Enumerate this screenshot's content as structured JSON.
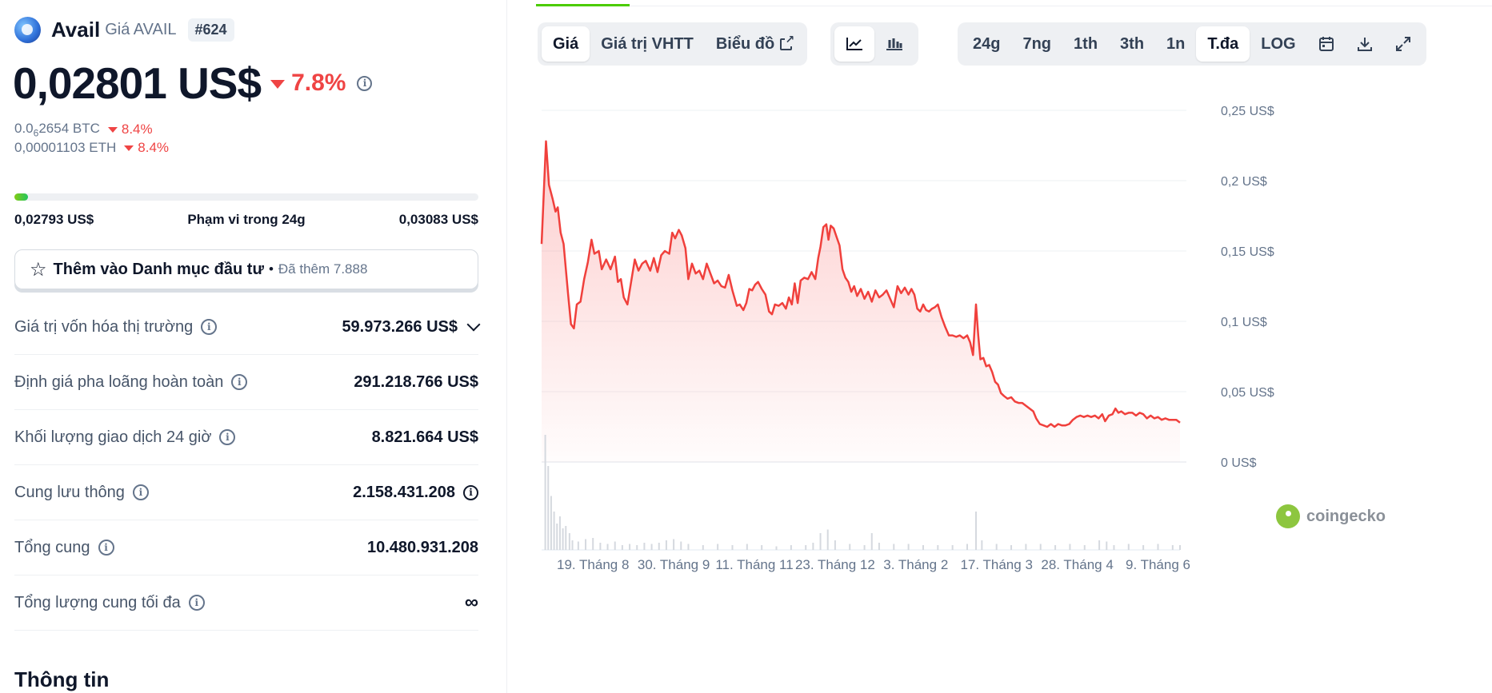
{
  "coin": {
    "name": "Avail",
    "price_label": "Giá AVAIL",
    "rank": "#624",
    "price": "0,02801 US$",
    "change_24h": "7.8%",
    "btc_prefix": "0.0",
    "btc_sub": "6",
    "btc_rest": "2654 BTC",
    "btc_change": "8.4%",
    "eth_price": "0,00001103 ETH",
    "eth_change": "8.4%"
  },
  "range": {
    "low": "0,02793 US$",
    "label": "Phạm vi trong 24g",
    "high": "0,03083 US$",
    "position_fraction": 0.03
  },
  "portfolio": {
    "button_label": "Thêm vào Danh mục đầu tư",
    "separator": "•",
    "added": "Đã thêm 7.888"
  },
  "stats": [
    {
      "label": "Giá trị vốn hóa thị trường",
      "value": "59.973.266 US$"
    },
    {
      "label": "Định giá pha loãng hoàn toàn",
      "value": "291.218.766 US$"
    },
    {
      "label": "Khối lượng giao dịch 24 giờ",
      "value": "8.821.664 US$"
    },
    {
      "label": "Cung lưu thông",
      "value": "2.158.431.208"
    },
    {
      "label": "Tổng cung",
      "value": "10.480.931.208"
    },
    {
      "label": "Tổng lượng cung tối đa",
      "value": "∞"
    }
  ],
  "info_section_title": "Thông tin",
  "chart_tabs": {
    "price": "Giá",
    "market_cap": "Giá trị VHTT",
    "chart": "Biểu đồ"
  },
  "chart_type_icons": [
    "line-chart-icon",
    "candlestick-icon"
  ],
  "time_ranges": [
    "24g",
    "7ng",
    "1th",
    "3th",
    "1n",
    "T.đa",
    "LOG"
  ],
  "active_time_range": "T.đa",
  "tool_icons": [
    "calendar-icon",
    "download-icon",
    "fullscreen-icon"
  ],
  "watermark": "coingecko",
  "colors": {
    "accent_green": "#4bcc00",
    "negative": "#ef4444",
    "line": "#f0403c"
  },
  "chart_data": {
    "type": "area",
    "ylabel": "",
    "y_tick_labels": [
      "0,25 US$",
      "0,2 US$",
      "0,15 US$",
      "0,1 US$",
      "0,05 US$",
      "0 US$"
    ],
    "y_ticks": [
      0.25,
      0.2,
      0.15,
      0.1,
      0.05,
      0
    ],
    "ylim": [
      0,
      0.25
    ],
    "x_tick_labels": [
      "19. Tháng 8",
      "30. Tháng 9",
      "11. Tháng 11",
      "23. Tháng 12",
      "3. Tháng 2",
      "17. Tháng 3",
      "28. Tháng 4",
      "9. Tháng 6"
    ],
    "x_tick_positions": [
      7,
      18,
      29,
      40,
      51,
      62,
      73,
      84
    ],
    "x_range": [
      0,
      87
    ],
    "series": [
      {
        "values": [
          [
            0,
            0.155
          ],
          [
            0.6,
            0.228
          ],
          [
            1.0,
            0.197
          ],
          [
            1.5,
            0.187
          ],
          [
            1.9,
            0.178
          ],
          [
            2.2,
            0.181
          ],
          [
            2.6,
            0.163
          ],
          [
            3.0,
            0.155
          ],
          [
            3.6,
            0.12
          ],
          [
            4.0,
            0.098
          ],
          [
            4.4,
            0.095
          ],
          [
            4.8,
            0.112
          ],
          [
            5.3,
            0.114
          ],
          [
            5.8,
            0.13
          ],
          [
            6.3,
            0.142
          ],
          [
            6.8,
            0.158
          ],
          [
            7.2,
            0.148
          ],
          [
            7.8,
            0.15
          ],
          [
            8.2,
            0.137
          ],
          [
            8.8,
            0.144
          ],
          [
            9.4,
            0.137
          ],
          [
            10.0,
            0.146
          ],
          [
            10.4,
            0.128
          ],
          [
            10.8,
            0.13
          ],
          [
            11.2,
            0.117
          ],
          [
            11.7,
            0.112
          ],
          [
            12.2,
            0.128
          ],
          [
            12.7,
            0.144
          ],
          [
            13.2,
            0.136
          ],
          [
            13.7,
            0.141
          ],
          [
            14.2,
            0.143
          ],
          [
            14.8,
            0.136
          ],
          [
            15.3,
            0.145
          ],
          [
            15.8,
            0.135
          ],
          [
            16.3,
            0.147
          ],
          [
            16.8,
            0.15
          ],
          [
            17.4,
            0.148
          ],
          [
            17.8,
            0.163
          ],
          [
            18.2,
            0.159
          ],
          [
            18.7,
            0.165
          ],
          [
            19.1,
            0.161
          ],
          [
            19.6,
            0.152
          ],
          [
            20.0,
            0.13
          ],
          [
            20.5,
            0.141
          ],
          [
            21.0,
            0.134
          ],
          [
            21.5,
            0.136
          ],
          [
            22.0,
            0.13
          ],
          [
            22.5,
            0.141
          ],
          [
            23.0,
            0.134
          ],
          [
            23.5,
            0.127
          ],
          [
            24.0,
            0.129
          ],
          [
            24.5,
            0.125
          ],
          [
            25.0,
            0.124
          ],
          [
            25.5,
            0.133
          ],
          [
            26.0,
            0.122
          ],
          [
            26.6,
            0.111
          ],
          [
            27.0,
            0.112
          ],
          [
            27.5,
            0.108
          ],
          [
            27.9,
            0.113
          ],
          [
            28.3,
            0.123
          ],
          [
            28.7,
            0.122
          ],
          [
            29.1,
            0.126
          ],
          [
            29.5,
            0.128
          ],
          [
            30.0,
            0.123
          ],
          [
            30.5,
            0.119
          ],
          [
            31.0,
            0.107
          ],
          [
            31.4,
            0.105
          ],
          [
            31.8,
            0.112
          ],
          [
            32.3,
            0.111
          ],
          [
            32.8,
            0.113
          ],
          [
            33.3,
            0.109
          ],
          [
            33.7,
            0.117
          ],
          [
            34.1,
            0.112
          ],
          [
            34.5,
            0.127
          ],
          [
            34.9,
            0.113
          ],
          [
            35.3,
            0.129
          ],
          [
            35.8,
            0.131
          ],
          [
            36.3,
            0.13
          ],
          [
            36.8,
            0.135
          ],
          [
            37.3,
            0.13
          ],
          [
            37.7,
            0.145
          ],
          [
            38.0,
            0.153
          ],
          [
            38.4,
            0.167
          ],
          [
            38.8,
            0.169
          ],
          [
            39.1,
            0.158
          ],
          [
            39.4,
            0.168
          ],
          [
            39.8,
            0.166
          ],
          [
            40.2,
            0.16
          ],
          [
            40.6,
            0.154
          ],
          [
            41.0,
            0.137
          ],
          [
            41.4,
            0.131
          ],
          [
            41.8,
            0.128
          ],
          [
            42.2,
            0.121
          ],
          [
            42.6,
            0.125
          ],
          [
            43.0,
            0.118
          ],
          [
            43.5,
            0.123
          ],
          [
            44.0,
            0.116
          ],
          [
            44.5,
            0.121
          ],
          [
            45.0,
            0.114
          ],
          [
            45.5,
            0.122
          ],
          [
            46.0,
            0.117
          ],
          [
            46.5,
            0.119
          ],
          [
            47.0,
            0.122
          ],
          [
            47.5,
            0.116
          ],
          [
            48.0,
            0.11
          ],
          [
            48.5,
            0.125
          ],
          [
            49.0,
            0.12
          ],
          [
            49.5,
            0.124
          ],
          [
            50.0,
            0.119
          ],
          [
            50.4,
            0.123
          ],
          [
            50.8,
            0.119
          ],
          [
            51.2,
            0.109
          ],
          [
            51.6,
            0.107
          ],
          [
            52.0,
            0.112
          ],
          [
            52.4,
            0.108
          ],
          [
            52.8,
            0.107
          ],
          [
            53.2,
            0.109
          ],
          [
            53.6,
            0.11
          ],
          [
            54.0,
            0.112
          ],
          [
            54.5,
            0.103
          ],
          [
            55.0,
            0.096
          ],
          [
            55.5,
            0.09
          ],
          [
            56.0,
            0.09
          ],
          [
            56.5,
            0.089
          ],
          [
            57.0,
            0.09
          ],
          [
            57.5,
            0.088
          ],
          [
            58.0,
            0.09
          ],
          [
            58.4,
            0.085
          ],
          [
            58.8,
            0.076
          ],
          [
            59.2,
            0.112
          ],
          [
            59.5,
            0.09
          ],
          [
            59.8,
            0.073
          ],
          [
            60.2,
            0.074
          ],
          [
            60.6,
            0.068
          ],
          [
            61.0,
            0.069
          ],
          [
            61.4,
            0.064
          ],
          [
            61.8,
            0.057
          ],
          [
            62.2,
            0.055
          ],
          [
            62.6,
            0.049
          ],
          [
            63.0,
            0.047
          ],
          [
            63.5,
            0.045
          ],
          [
            64.0,
            0.046
          ],
          [
            64.5,
            0.043
          ],
          [
            65.0,
            0.042
          ],
          [
            65.5,
            0.042
          ],
          [
            66.0,
            0.04
          ],
          [
            66.5,
            0.038
          ],
          [
            67.0,
            0.036
          ],
          [
            67.4,
            0.031
          ],
          [
            67.9,
            0.027
          ],
          [
            68.4,
            0.026
          ],
          [
            68.9,
            0.025
          ],
          [
            69.4,
            0.027
          ],
          [
            69.9,
            0.025
          ],
          [
            70.4,
            0.027
          ],
          [
            70.9,
            0.026
          ],
          [
            71.4,
            0.026
          ],
          [
            71.9,
            0.027
          ],
          [
            72.4,
            0.03
          ],
          [
            72.9,
            0.032
          ],
          [
            73.4,
            0.033
          ],
          [
            73.9,
            0.032
          ],
          [
            74.4,
            0.033
          ],
          [
            74.9,
            0.032
          ],
          [
            75.4,
            0.033
          ],
          [
            75.9,
            0.031
          ],
          [
            76.4,
            0.034
          ],
          [
            76.8,
            0.029
          ],
          [
            77.3,
            0.033
          ],
          [
            77.8,
            0.034
          ],
          [
            78.2,
            0.038
          ],
          [
            78.6,
            0.035
          ],
          [
            79.0,
            0.036
          ],
          [
            79.5,
            0.034
          ],
          [
            80.0,
            0.035
          ],
          [
            80.5,
            0.035
          ],
          [
            81.0,
            0.033
          ],
          [
            81.5,
            0.035
          ],
          [
            82.0,
            0.034
          ],
          [
            82.5,
            0.031
          ],
          [
            83.0,
            0.033
          ],
          [
            83.5,
            0.031
          ],
          [
            84.0,
            0.032
          ],
          [
            84.5,
            0.03
          ],
          [
            85.0,
            0.031
          ],
          [
            85.5,
            0.03
          ],
          [
            86.0,
            0.03
          ],
          [
            86.5,
            0.03
          ],
          [
            87.0,
            0.028
          ]
        ]
      }
    ],
    "volume": [
      [
        0.5,
        0.96
      ],
      [
        0.9,
        0.7
      ],
      [
        1.3,
        0.45
      ],
      [
        1.7,
        0.32
      ],
      [
        2.1,
        0.22
      ],
      [
        2.5,
        0.28
      ],
      [
        2.9,
        0.18
      ],
      [
        3.3,
        0.2
      ],
      [
        3.8,
        0.14
      ],
      [
        4.2,
        0.08
      ],
      [
        5,
        0.07
      ],
      [
        6,
        0.09
      ],
      [
        7,
        0.1
      ],
      [
        8,
        0.06
      ],
      [
        9,
        0.05
      ],
      [
        10,
        0.07
      ],
      [
        11,
        0.04
      ],
      [
        12,
        0.05
      ],
      [
        13,
        0.04
      ],
      [
        14,
        0.06
      ],
      [
        15,
        0.05
      ],
      [
        16,
        0.06
      ],
      [
        17,
        0.08
      ],
      [
        18,
        0.09
      ],
      [
        19,
        0.07
      ],
      [
        20,
        0.05
      ],
      [
        22,
        0.04
      ],
      [
        24,
        0.05
      ],
      [
        26,
        0.04
      ],
      [
        28,
        0.05
      ],
      [
        30,
        0.04
      ],
      [
        32,
        0.03
      ],
      [
        34,
        0.04
      ],
      [
        36,
        0.04
      ],
      [
        37,
        0.06
      ],
      [
        38,
        0.14
      ],
      [
        39,
        0.17
      ],
      [
        40,
        0.08
      ],
      [
        42,
        0.05
      ],
      [
        44,
        0.04
      ],
      [
        45,
        0.14
      ],
      [
        46,
        0.06
      ],
      [
        48,
        0.05
      ],
      [
        50,
        0.05
      ],
      [
        52,
        0.04
      ],
      [
        54,
        0.04
      ],
      [
        56,
        0.04
      ],
      [
        58,
        0.05
      ],
      [
        59.2,
        0.32
      ],
      [
        60,
        0.08
      ],
      [
        62,
        0.05
      ],
      [
        64,
        0.04
      ],
      [
        66,
        0.05
      ],
      [
        68,
        0.05
      ],
      [
        70,
        0.04
      ],
      [
        72,
        0.05
      ],
      [
        74,
        0.04
      ],
      [
        76,
        0.08
      ],
      [
        77,
        0.07
      ],
      [
        78,
        0.04
      ],
      [
        80,
        0.05
      ],
      [
        82,
        0.04
      ],
      [
        84,
        0.05
      ],
      [
        86,
        0.04
      ],
      [
        87,
        0.04
      ]
    ]
  }
}
